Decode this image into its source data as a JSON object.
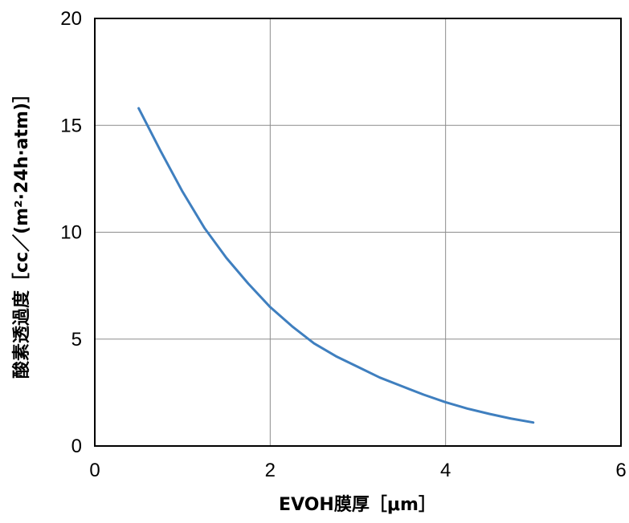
{
  "chart_data": {
    "type": "line",
    "title": "",
    "xlabel": "EVOH膜厚［μm］",
    "ylabel": "酸素透過度［cc／(m²·24h·atm)］",
    "xlim": [
      0,
      6
    ],
    "ylim": [
      0,
      20
    ],
    "x_ticks": [
      "0",
      "2",
      "4",
      "6"
    ],
    "y_ticks": [
      "0",
      "5",
      "10",
      "15",
      "20"
    ],
    "grid": true,
    "legend": "none",
    "series": [
      {
        "color": "#3f7fbf",
        "x": [
          0.5,
          0.75,
          1.0,
          1.25,
          1.5,
          1.75,
          2.0,
          2.25,
          2.5,
          2.75,
          3.0,
          3.25,
          3.5,
          3.75,
          4.0,
          4.25,
          4.5,
          4.75,
          5.0
        ],
        "y": [
          15.8,
          13.8,
          11.9,
          10.2,
          8.8,
          7.6,
          6.5,
          5.6,
          4.8,
          4.2,
          3.7,
          3.2,
          2.8,
          2.4,
          2.05,
          1.75,
          1.5,
          1.28,
          1.1
        ]
      }
    ]
  }
}
